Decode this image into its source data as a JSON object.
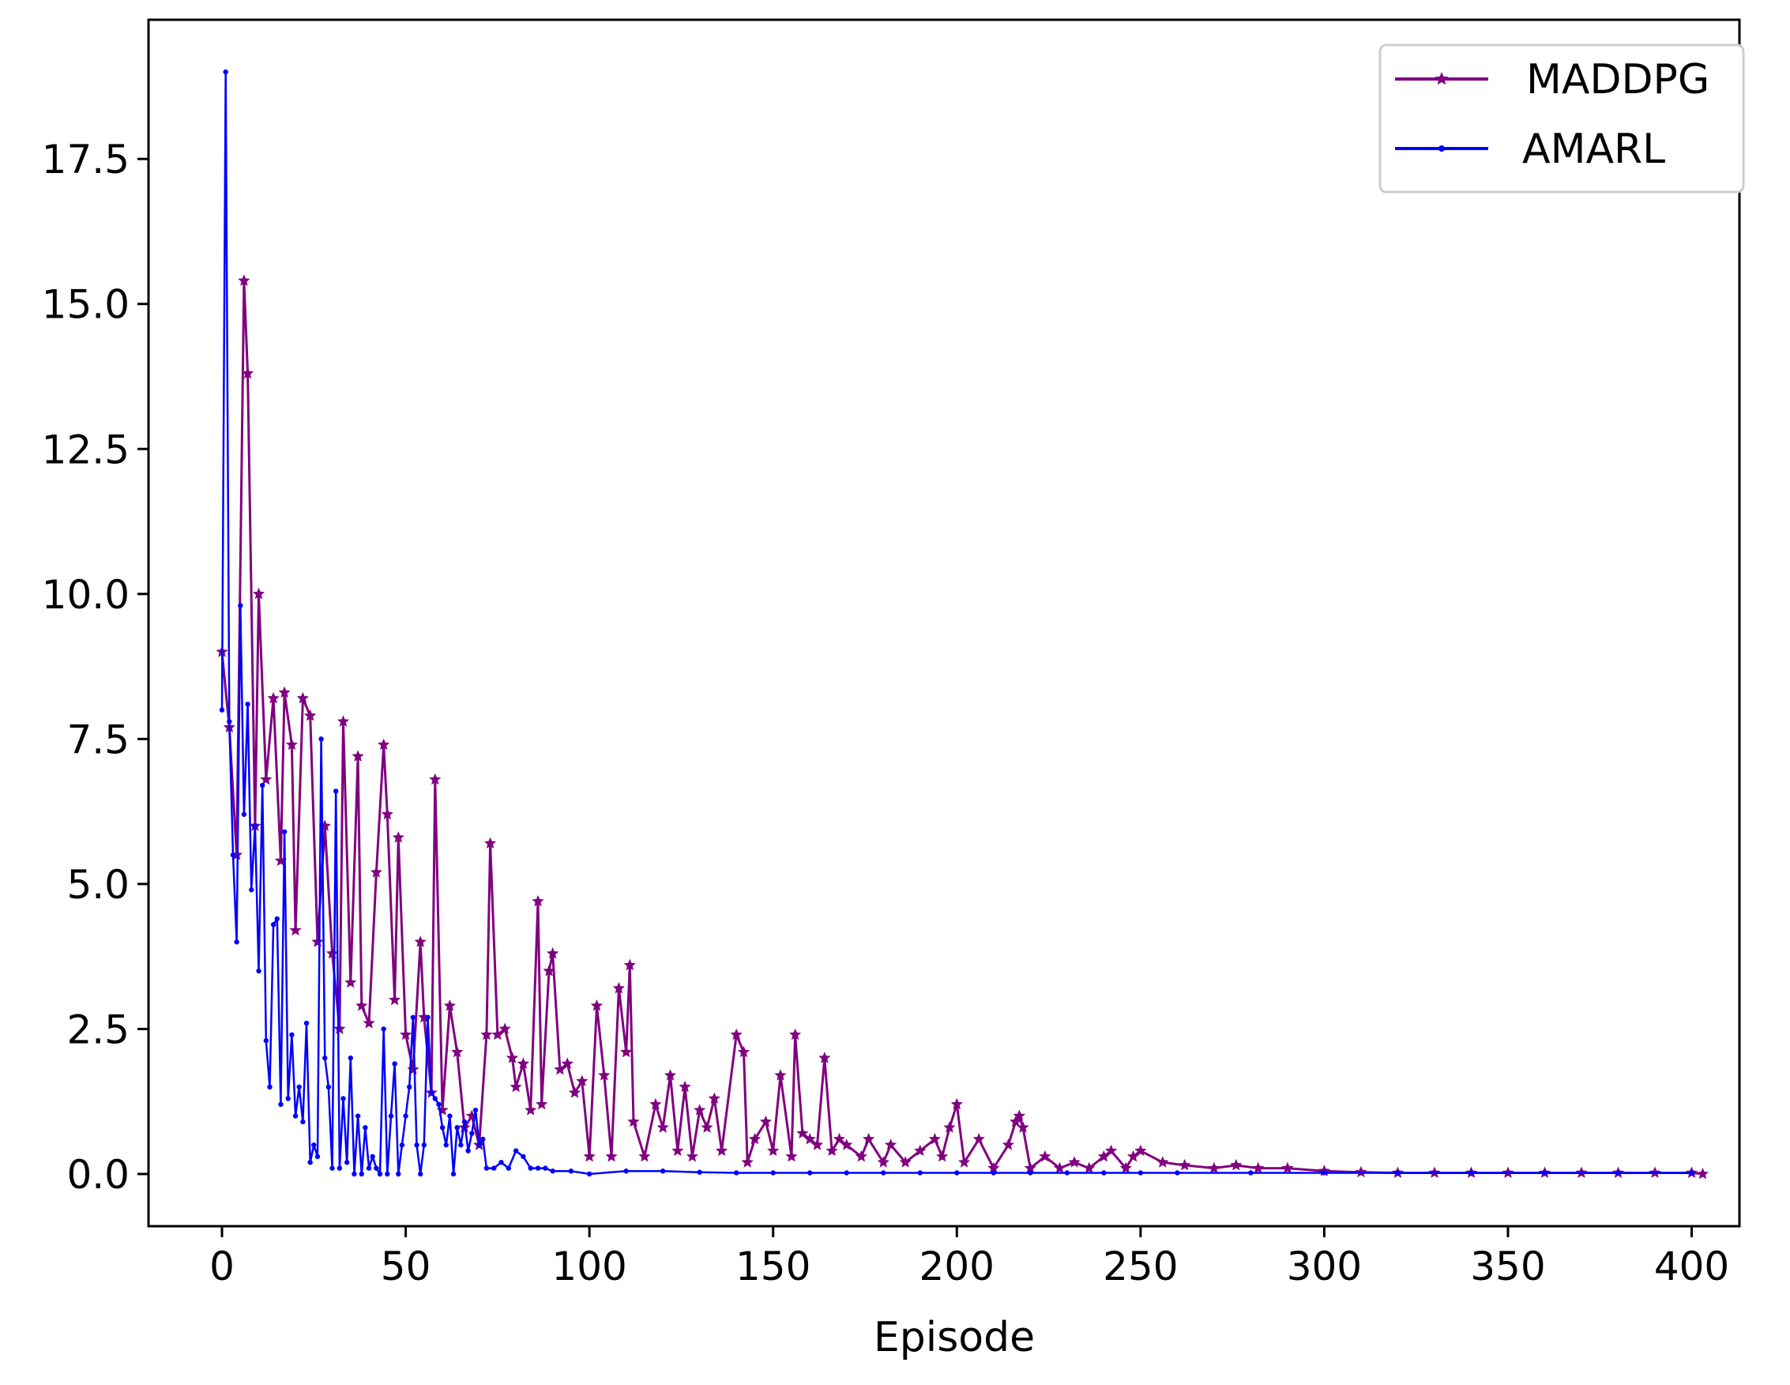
{
  "chart_data": {
    "type": "line",
    "title": "",
    "xlabel": "Episode",
    "ylabel": "",
    "xlim": [
      -20,
      413
    ],
    "ylim": [
      -0.9,
      19.9
    ],
    "xticks": [
      0,
      50,
      100,
      150,
      200,
      250,
      300,
      350,
      400
    ],
    "xtick_labels": [
      "0",
      "50",
      "100",
      "150",
      "200",
      "250",
      "300",
      "350",
      "400"
    ],
    "yticks": [
      0,
      2.5,
      5,
      7.5,
      10,
      12.5,
      15,
      17.5
    ],
    "ytick_labels": [
      "0.0",
      "2.5",
      "5.0",
      "7.5",
      "10.0",
      "12.5",
      "15.0",
      "17.5"
    ],
    "grid": false,
    "legend_position": "top-right",
    "series": [
      {
        "name": "MADDPG",
        "color": "#800080",
        "marker": "star",
        "x": [
          0,
          2,
          4,
          6,
          7,
          9,
          10,
          12,
          14,
          16,
          17,
          19,
          20,
          22,
          24,
          26,
          28,
          30,
          32,
          33,
          35,
          37,
          38,
          40,
          42,
          44,
          45,
          47,
          48,
          50,
          52,
          54,
          55,
          57,
          58,
          60,
          62,
          64,
          66,
          68,
          70,
          72,
          73,
          75,
          77,
          79,
          80,
          82,
          84,
          86,
          87,
          89,
          90,
          92,
          94,
          96,
          98,
          100,
          102,
          104,
          106,
          108,
          110,
          111,
          112,
          115,
          118,
          120,
          122,
          124,
          126,
          128,
          130,
          132,
          134,
          136,
          140,
          142,
          143,
          145,
          148,
          150,
          152,
          155,
          156,
          158,
          160,
          162,
          164,
          166,
          168,
          170,
          174,
          176,
          180,
          182,
          186,
          190,
          194,
          196,
          198,
          200,
          202,
          206,
          210,
          214,
          216,
          217,
          218,
          220,
          224,
          228,
          232,
          236,
          240,
          242,
          246,
          248,
          250,
          256,
          262,
          270,
          276,
          282,
          290,
          300,
          310,
          320,
          330,
          340,
          350,
          360,
          370,
          380,
          390,
          400,
          403
        ],
        "values": [
          9.0,
          7.7,
          5.5,
          15.4,
          13.8,
          6.0,
          10.0,
          6.8,
          8.2,
          5.4,
          8.3,
          7.4,
          4.2,
          8.2,
          7.9,
          4.0,
          6.0,
          3.8,
          2.5,
          7.8,
          3.3,
          7.2,
          2.9,
          2.6,
          5.2,
          7.4,
          6.2,
          3.0,
          5.8,
          2.4,
          1.8,
          4.0,
          2.7,
          1.4,
          6.8,
          1.1,
          2.9,
          2.1,
          0.8,
          1.0,
          0.5,
          2.4,
          5.7,
          2.4,
          2.5,
          2.0,
          1.5,
          1.9,
          1.1,
          4.7,
          1.2,
          3.5,
          3.8,
          1.8,
          1.9,
          1.4,
          1.6,
          0.3,
          2.9,
          1.7,
          0.3,
          3.2,
          2.1,
          3.6,
          0.9,
          0.3,
          1.2,
          0.8,
          1.7,
          0.4,
          1.5,
          0.3,
          1.1,
          0.8,
          1.3,
          0.4,
          2.4,
          2.1,
          0.2,
          0.6,
          0.9,
          0.4,
          1.7,
          0.3,
          2.4,
          0.7,
          0.6,
          0.5,
          2.0,
          0.4,
          0.6,
          0.5,
          0.3,
          0.6,
          0.2,
          0.5,
          0.2,
          0.4,
          0.6,
          0.3,
          0.8,
          1.2,
          0.2,
          0.6,
          0.1,
          0.5,
          0.9,
          1.0,
          0.8,
          0.1,
          0.3,
          0.1,
          0.2,
          0.1,
          0.3,
          0.4,
          0.1,
          0.3,
          0.4,
          0.2,
          0.15,
          0.1,
          0.15,
          0.1,
          0.1,
          0.05,
          0.03,
          0.02,
          0.02,
          0.02,
          0.02,
          0.02,
          0.02,
          0.02,
          0.02,
          0.02,
          0.0
        ]
      },
      {
        "name": "AMARL",
        "color": "#0000ff",
        "marker": "dot",
        "x": [
          0,
          1,
          2,
          3,
          4,
          5,
          6,
          7,
          8,
          9,
          10,
          11,
          12,
          13,
          14,
          15,
          16,
          17,
          18,
          19,
          20,
          21,
          22,
          23,
          24,
          25,
          26,
          27,
          28,
          29,
          30,
          31,
          32,
          33,
          34,
          35,
          36,
          37,
          38,
          39,
          40,
          41,
          42,
          43,
          44,
          45,
          46,
          47,
          48,
          49,
          50,
          51,
          52,
          53,
          54,
          55,
          56,
          57,
          58,
          59,
          60,
          61,
          62,
          63,
          64,
          65,
          66,
          67,
          68,
          69,
          70,
          71,
          72,
          74,
          76,
          78,
          80,
          82,
          84,
          86,
          88,
          90,
          95,
          100,
          110,
          120,
          130,
          140,
          150,
          160,
          170,
          180,
          190,
          200,
          210,
          220,
          230,
          240,
          250,
          260,
          280,
          300,
          320,
          340,
          360,
          380,
          400
        ],
        "values": [
          8.0,
          19.0,
          7.8,
          5.5,
          4.0,
          9.8,
          6.2,
          8.1,
          4.9,
          6.0,
          3.5,
          6.7,
          2.3,
          1.5,
          4.3,
          4.4,
          1.2,
          5.9,
          1.3,
          2.4,
          1.0,
          1.5,
          0.9,
          2.6,
          0.2,
          0.5,
          0.3,
          7.5,
          2.0,
          1.5,
          0.1,
          6.6,
          0.1,
          1.3,
          0.2,
          2.0,
          0.0,
          1.0,
          0.0,
          0.8,
          0.1,
          0.3,
          0.1,
          0.0,
          2.5,
          0.0,
          1.0,
          1.9,
          0.0,
          0.5,
          1.0,
          1.5,
          2.7,
          0.5,
          0.0,
          0.5,
          2.7,
          1.4,
          1.3,
          1.2,
          0.8,
          0.5,
          1.0,
          0.0,
          0.8,
          0.5,
          0.9,
          0.4,
          0.7,
          1.1,
          0.5,
          0.6,
          0.1,
          0.1,
          0.2,
          0.1,
          0.4,
          0.3,
          0.1,
          0.1,
          0.1,
          0.05,
          0.05,
          0.0,
          0.05,
          0.05,
          0.03,
          0.02,
          0.02,
          0.02,
          0.02,
          0.02,
          0.02,
          0.02,
          0.02,
          0.02,
          0.02,
          0.02,
          0.02,
          0.02,
          0.02,
          0.02,
          0.02,
          0.02,
          0.02,
          0.02,
          0.02
        ]
      }
    ]
  }
}
